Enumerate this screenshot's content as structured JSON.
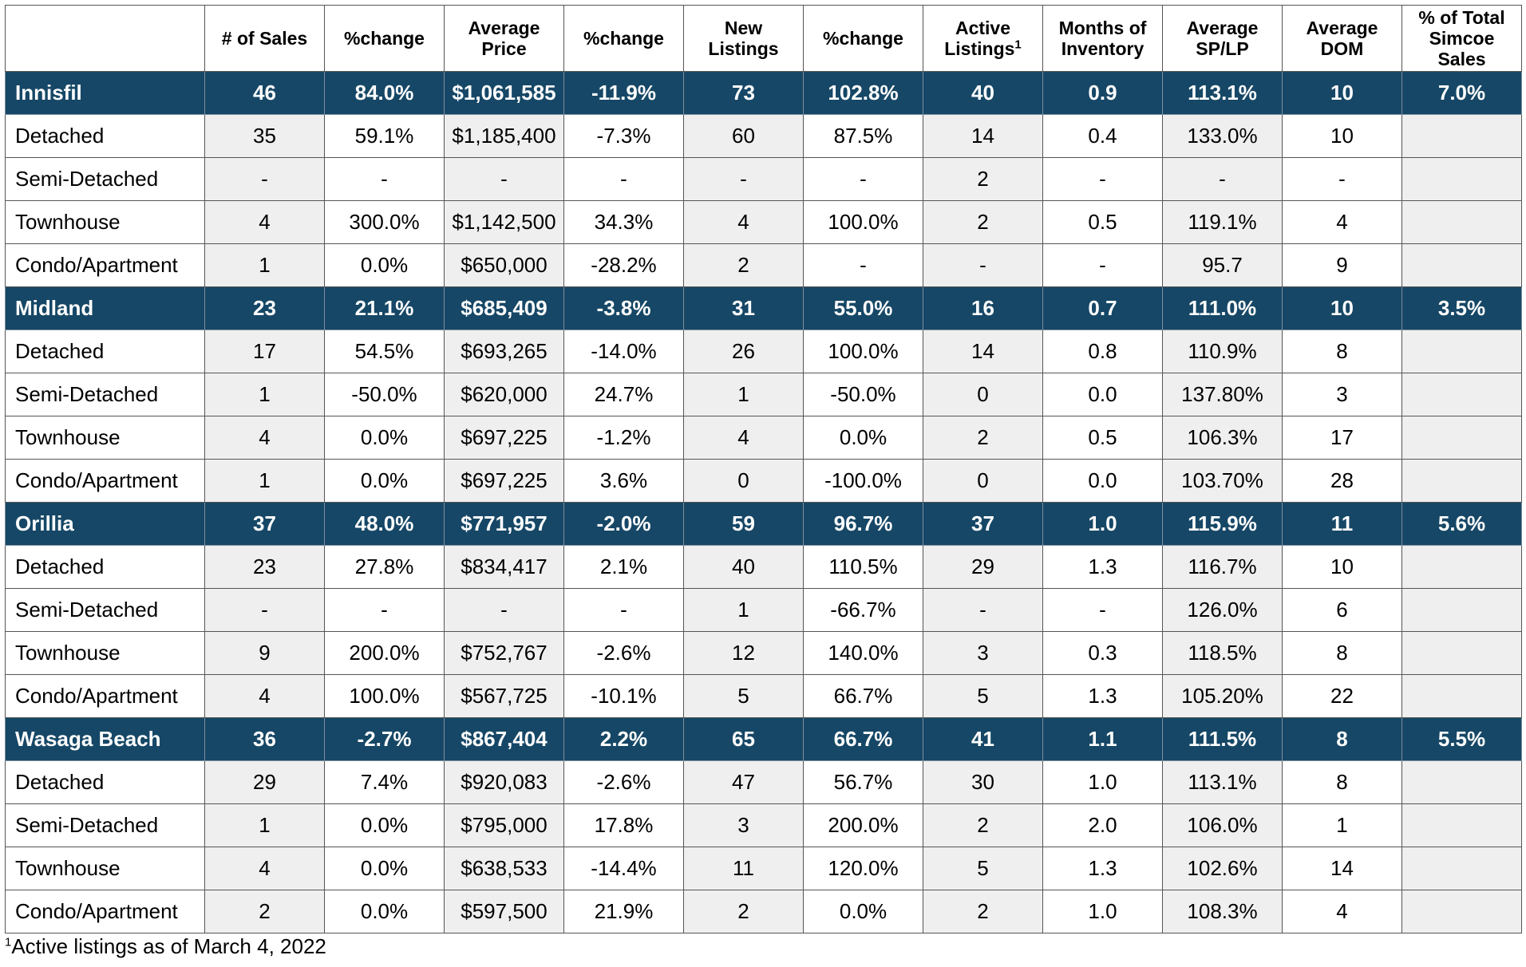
{
  "table": {
    "headers": [
      "",
      "# of Sales",
      "%change",
      "Average Price",
      "%change",
      "New Listings",
      "%change",
      "Active Listings",
      "Months of Inventory",
      "Average SP/LP",
      "Average DOM",
      "% of Total Simcoe Sales"
    ],
    "header_lines": [
      [
        ""
      ],
      [
        "# of Sales"
      ],
      [
        "%change"
      ],
      [
        "Average",
        "Price"
      ],
      [
        "%change"
      ],
      [
        "New",
        "Listings"
      ],
      [
        "%change"
      ],
      [
        "Active",
        "Listings"
      ],
      [
        "Months of",
        "Inventory"
      ],
      [
        "Average",
        "SP/LP"
      ],
      [
        "Average",
        "DOM"
      ],
      [
        "% of Total",
        "Simcoe",
        "Sales"
      ]
    ],
    "active_listings_footnote_marker": "1",
    "rows": [
      {
        "type": "region",
        "cells": [
          "Innisfil",
          "46",
          "84.0%",
          "$1,061,585",
          "-11.9%",
          "73",
          "102.8%",
          "40",
          "0.9",
          "113.1%",
          "10",
          "7.0%"
        ]
      },
      {
        "type": "sub",
        "cells": [
          "Detached",
          "35",
          "59.1%",
          "$1,185,400",
          "-7.3%",
          "60",
          "87.5%",
          "14",
          "0.4",
          "133.0%",
          "10",
          ""
        ]
      },
      {
        "type": "sub",
        "cells": [
          "Semi-Detached",
          "-",
          "-",
          "-",
          "-",
          "-",
          "-",
          "2",
          "-",
          "-",
          "-",
          ""
        ]
      },
      {
        "type": "sub",
        "cells": [
          "Townhouse",
          "4",
          "300.0%",
          "$1,142,500",
          "34.3%",
          "4",
          "100.0%",
          "2",
          "0.5",
          "119.1%",
          "4",
          ""
        ]
      },
      {
        "type": "sub",
        "cells": [
          "Condo/Apartment",
          "1",
          "0.0%",
          "$650,000",
          "-28.2%",
          "2",
          "-",
          "-",
          "-",
          "95.7",
          "9",
          ""
        ]
      },
      {
        "type": "region",
        "cells": [
          "Midland",
          "23",
          "21.1%",
          "$685,409",
          "-3.8%",
          "31",
          "55.0%",
          "16",
          "0.7",
          "111.0%",
          "10",
          "3.5%"
        ]
      },
      {
        "type": "sub",
        "cells": [
          "Detached",
          "17",
          "54.5%",
          "$693,265",
          "-14.0%",
          "26",
          "100.0%",
          "14",
          "0.8",
          "110.9%",
          "8",
          ""
        ]
      },
      {
        "type": "sub",
        "cells": [
          "Semi-Detached",
          "1",
          "-50.0%",
          "$620,000",
          "24.7%",
          "1",
          "-50.0%",
          "0",
          "0.0",
          "137.80%",
          "3",
          ""
        ]
      },
      {
        "type": "sub",
        "cells": [
          "Townhouse",
          "4",
          "0.0%",
          "$697,225",
          "-1.2%",
          "4",
          "0.0%",
          "2",
          "0.5",
          "106.3%",
          "17",
          ""
        ]
      },
      {
        "type": "sub",
        "cells": [
          "Condo/Apartment",
          "1",
          "0.0%",
          "$697,225",
          "3.6%",
          "0",
          "-100.0%",
          "0",
          "0.0",
          "103.70%",
          "28",
          ""
        ]
      },
      {
        "type": "region",
        "cells": [
          "Orillia",
          "37",
          "48.0%",
          "$771,957",
          "-2.0%",
          "59",
          "96.7%",
          "37",
          "1.0",
          "115.9%",
          "11",
          "5.6%"
        ]
      },
      {
        "type": "sub",
        "cells": [
          "Detached",
          "23",
          "27.8%",
          "$834,417",
          "2.1%",
          "40",
          "110.5%",
          "29",
          "1.3",
          "116.7%",
          "10",
          ""
        ]
      },
      {
        "type": "sub",
        "cells": [
          "Semi-Detached",
          "-",
          "-",
          "-",
          "-",
          "1",
          "-66.7%",
          "-",
          "-",
          "126.0%",
          "6",
          ""
        ]
      },
      {
        "type": "sub",
        "cells": [
          "Townhouse",
          "9",
          "200.0%",
          "$752,767",
          "-2.6%",
          "12",
          "140.0%",
          "3",
          "0.3",
          "118.5%",
          "8",
          ""
        ]
      },
      {
        "type": "sub",
        "cells": [
          "Condo/Apartment",
          "4",
          "100.0%",
          "$567,725",
          "-10.1%",
          "5",
          "66.7%",
          "5",
          "1.3",
          "105.20%",
          "22",
          ""
        ]
      },
      {
        "type": "region",
        "cells": [
          "Wasaga Beach",
          "36",
          "-2.7%",
          "$867,404",
          "2.2%",
          "65",
          "66.7%",
          "41",
          "1.1",
          "111.5%",
          "8",
          "5.5%"
        ]
      },
      {
        "type": "sub",
        "cells": [
          "Detached",
          "29",
          "7.4%",
          "$920,083",
          "-2.6%",
          "47",
          "56.7%",
          "30",
          "1.0",
          "113.1%",
          "8",
          ""
        ]
      },
      {
        "type": "sub",
        "cells": [
          "Semi-Detached",
          "1",
          "0.0%",
          "$795,000",
          "17.8%",
          "3",
          "200.0%",
          "2",
          "2.0",
          "106.0%",
          "1",
          ""
        ]
      },
      {
        "type": "sub",
        "cells": [
          "Townhouse",
          "4",
          "0.0%",
          "$638,533",
          "-14.4%",
          "11",
          "120.0%",
          "5",
          "1.3",
          "102.6%",
          "14",
          ""
        ]
      },
      {
        "type": "sub",
        "cells": [
          "Condo/Apartment",
          "2",
          "0.0%",
          "$597,500",
          "21.9%",
          "2",
          "0.0%",
          "2",
          "1.0",
          "108.3%",
          "4",
          ""
        ]
      }
    ]
  },
  "footnote": {
    "marker": "1",
    "text": "Active listings as of March 4, 2022"
  },
  "colors": {
    "region_row_bg": "#164766",
    "region_row_text": "#ffffff",
    "alt_column_bg": "#efefef",
    "border": "#555555"
  }
}
